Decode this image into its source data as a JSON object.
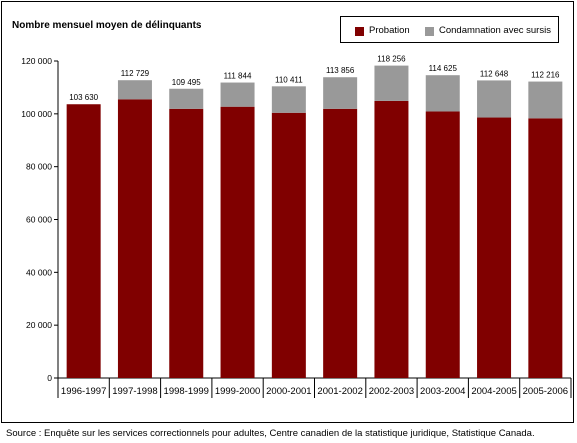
{
  "chart_data": {
    "type": "bar",
    "stacked": true,
    "ylabel": "Nombre mensuel moyen de délinquants",
    "ylim": [
      0,
      120000
    ],
    "yticks": [
      0,
      20000,
      40000,
      60000,
      80000,
      100000,
      120000
    ],
    "ytick_labels": [
      "0",
      "20 000",
      "40 000",
      "60 000",
      "80 000",
      "100 000",
      "120 000"
    ],
    "categories": [
      "1996-1997",
      "1997-1998",
      "1998-1999",
      "1999-2000",
      "2000-2001",
      "2001-2002",
      "2002-2003",
      "2003-2004",
      "2004-2005",
      "2005-2006"
    ],
    "series": [
      {
        "name": "Probation",
        "color": "#800000",
        "values": [
          103630,
          105500,
          101900,
          102700,
          100400,
          101900,
          104900,
          100900,
          98600,
          98300
        ]
      },
      {
        "name": "Condamnation avec sursis",
        "color": "#999999",
        "values": [
          0,
          7229,
          7595,
          9144,
          10011,
          11956,
          13356,
          13725,
          14048,
          13916
        ]
      }
    ],
    "totals": [
      103630,
      112729,
      109495,
      111844,
      110411,
      113856,
      118256,
      114625,
      112648,
      112216
    ],
    "total_labels": [
      "103 630",
      "112 729",
      "109 495",
      "111 844",
      "110 411",
      "113 856",
      "118 256",
      "114 625",
      "112 648",
      "112 216"
    ],
    "legend_position": "top-right",
    "grid": false
  },
  "source": "Source : Enquête sur les services correctionnels pour adultes, Centre canadien de la statistique juridique, Statistique Canada."
}
